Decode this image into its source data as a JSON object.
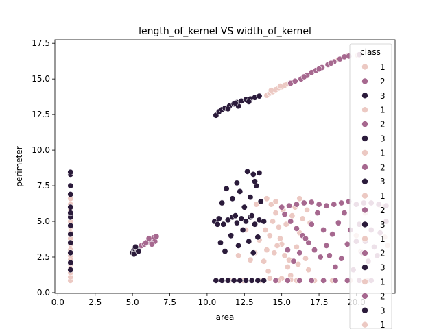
{
  "chart_data": {
    "type": "scatter",
    "title": "length_of_kernel VS width_of_kernel",
    "xlabel": "area",
    "ylabel": "perimeter",
    "xlim": [
      -0.2,
      22.6
    ],
    "ylim": [
      -0.05,
      17.75
    ],
    "xticks": [
      "0.0",
      "2.5",
      "5.0",
      "7.5",
      "10.0",
      "12.5",
      "15.0",
      "17.5",
      "20.0"
    ],
    "xtick_values": [
      0,
      2.5,
      5,
      7.5,
      10,
      12.5,
      15,
      17.5,
      20
    ],
    "yticks": [
      "0.0",
      "2.5",
      "5.0",
      "7.5",
      "10.0",
      "12.5",
      "15.0",
      "17.5"
    ],
    "ytick_values": [
      0,
      2.5,
      5,
      7.5,
      10,
      12.5,
      15,
      17.5
    ],
    "grid": false,
    "legend": {
      "title": "class",
      "placement": "top-right",
      "entries": [
        {
          "label": "1",
          "color": "#ecc9c3"
        },
        {
          "label": "2",
          "color": "#a6688f"
        },
        {
          "label": "3",
          "color": "#2b1b3b"
        },
        {
          "label": "1",
          "color": "#ecc9c3"
        },
        {
          "label": "2",
          "color": "#a6688f"
        },
        {
          "label": "3",
          "color": "#2b1b3b"
        },
        {
          "label": "1",
          "color": "#ecc9c3"
        },
        {
          "label": "2",
          "color": "#a6688f"
        },
        {
          "label": "3",
          "color": "#2b1b3b"
        },
        {
          "label": "1",
          "color": "#ecc9c3"
        },
        {
          "label": "2",
          "color": "#a6688f"
        },
        {
          "label": "3",
          "color": "#2b1b3b"
        },
        {
          "label": "1",
          "color": "#ecc9c3"
        },
        {
          "label": "2",
          "color": "#a6688f"
        },
        {
          "label": "3",
          "color": "#2b1b3b"
        },
        {
          "label": "1",
          "color": "#ecc9c3"
        },
        {
          "label": "2",
          "color": "#a6688f"
        },
        {
          "label": "3",
          "color": "#2b1b3b"
        },
        {
          "label": "1",
          "color": "#ecc9c3"
        }
      ]
    },
    "series": [
      {
        "name": "1",
        "color": "#ecc9c3",
        "points": [
          [
            0.85,
            0.85
          ],
          [
            0.85,
            1.1
          ],
          [
            0.85,
            1.4
          ],
          [
            0.85,
            1.7
          ],
          [
            0.85,
            2.0
          ],
          [
            0.85,
            2.3
          ],
          [
            0.85,
            2.6
          ],
          [
            0.85,
            3.0
          ],
          [
            0.85,
            3.4
          ],
          [
            0.85,
            3.8
          ],
          [
            0.85,
            4.2
          ],
          [
            0.85,
            4.6
          ],
          [
            0.85,
            5.0
          ],
          [
            0.85,
            5.4
          ],
          [
            0.85,
            5.8
          ],
          [
            0.85,
            6.2
          ],
          [
            0.85,
            6.6
          ],
          [
            14.0,
            13.85
          ],
          [
            14.2,
            14.0
          ],
          [
            14.4,
            14.1
          ],
          [
            14.6,
            14.25
          ],
          [
            14.8,
            14.35
          ],
          [
            15.0,
            14.45
          ],
          [
            15.2,
            14.55
          ],
          [
            15.4,
            14.65
          ],
          [
            15.6,
            14.75
          ],
          [
            14.3,
            14.2
          ],
          [
            14.9,
            14.5
          ],
          [
            18.8,
            16.35
          ],
          [
            19.4,
            16.6
          ],
          [
            20.1,
            16.65
          ],
          [
            13.8,
            2.2
          ],
          [
            14.0,
            3.0
          ],
          [
            14.2,
            4.0
          ],
          [
            14.4,
            5.0
          ],
          [
            14.6,
            5.6
          ],
          [
            14.8,
            4.6
          ],
          [
            15.0,
            3.4
          ],
          [
            15.2,
            2.6
          ],
          [
            15.4,
            1.8
          ],
          [
            15.6,
            1.2
          ],
          [
            15.8,
            2.2
          ],
          [
            16.0,
            3.2
          ],
          [
            16.2,
            4.2
          ],
          [
            16.4,
            5.2
          ],
          [
            16.6,
            2.4
          ],
          [
            16.8,
            1.6
          ],
          [
            14.1,
            1.5
          ],
          [
            14.5,
            2.8
          ],
          [
            14.9,
            3.8
          ],
          [
            15.3,
            4.8
          ],
          [
            15.7,
            5.4
          ],
          [
            16.1,
            2.0
          ],
          [
            14.3,
            6.2
          ],
          [
            15.1,
            5.8
          ],
          [
            15.9,
            6.0
          ],
          [
            14.0,
            6.6
          ],
          [
            14.7,
            3.3
          ],
          [
            15.5,
            2.3
          ],
          [
            13.9,
            4.4
          ],
          [
            14.2,
            1.0
          ],
          [
            15.0,
            1.0
          ],
          [
            15.6,
            0.9
          ],
          [
            12.9,
            2.3
          ],
          [
            13.2,
            2.8
          ],
          [
            12.6,
            4.4
          ],
          [
            13.5,
            3.7
          ],
          [
            12.1,
            2.6
          ],
          [
            13.3,
            6.2
          ],
          [
            14.6,
            6.4
          ],
          [
            16.2,
            6.6
          ],
          [
            16.7,
            5.8
          ],
          [
            16.9,
            4.9
          ],
          [
            20.0,
            4.0
          ],
          [
            20.6,
            5.6
          ],
          [
            21.6,
            6.1
          ],
          [
            21.9,
            3.9
          ],
          [
            22.1,
            3.3
          ],
          [
            20.3,
            2.9
          ],
          [
            10.6,
            0.85
          ],
          [
            11.5,
            0.85
          ],
          [
            12.4,
            0.85
          ],
          [
            13.6,
            0.85
          ],
          [
            14.8,
            0.85
          ],
          [
            16.0,
            0.85
          ],
          [
            17.2,
            0.85
          ],
          [
            18.4,
            0.85
          ],
          [
            19.6,
            0.85
          ],
          [
            20.8,
            0.85
          ]
        ]
      },
      {
        "name": "2",
        "color": "#a6688f",
        "points": [
          [
            15.6,
            14.7
          ],
          [
            15.9,
            14.85
          ],
          [
            16.3,
            15.0
          ],
          [
            16.7,
            15.25
          ],
          [
            17.0,
            15.45
          ],
          [
            17.3,
            15.6
          ],
          [
            17.7,
            15.8
          ],
          [
            18.1,
            16.0
          ],
          [
            18.5,
            16.2
          ],
          [
            18.9,
            16.4
          ],
          [
            19.2,
            16.55
          ],
          [
            16.5,
            15.15
          ],
          [
            17.5,
            15.7
          ],
          [
            18.3,
            16.1
          ],
          [
            19.5,
            16.6
          ],
          [
            20.2,
            16.7
          ],
          [
            5.4,
            3.1
          ],
          [
            5.6,
            3.3
          ],
          [
            5.8,
            3.4
          ],
          [
            6.0,
            3.55
          ],
          [
            6.2,
            3.7
          ],
          [
            6.4,
            3.85
          ],
          [
            6.5,
            3.6
          ],
          [
            6.3,
            3.4
          ],
          [
            6.6,
            3.95
          ],
          [
            5.9,
            3.5
          ],
          [
            6.1,
            3.8
          ],
          [
            15.0,
            6.0
          ],
          [
            15.5,
            6.1
          ],
          [
            16.0,
            6.2
          ],
          [
            16.5,
            6.3
          ],
          [
            17.0,
            6.35
          ],
          [
            17.5,
            6.2
          ],
          [
            18.0,
            6.1
          ],
          [
            18.5,
            6.2
          ],
          [
            19.0,
            6.3
          ],
          [
            19.5,
            6.4
          ],
          [
            20.0,
            6.2
          ],
          [
            20.5,
            6.3
          ],
          [
            21.0,
            6.3
          ],
          [
            21.5,
            6.2
          ],
          [
            22.0,
            6.1
          ],
          [
            15.2,
            5.5
          ],
          [
            15.6,
            5.0
          ],
          [
            16.0,
            4.5
          ],
          [
            16.4,
            4.0
          ],
          [
            16.8,
            3.5
          ],
          [
            17.2,
            3.0
          ],
          [
            17.6,
            2.5
          ],
          [
            18.0,
            3.3
          ],
          [
            18.4,
            4.1
          ],
          [
            18.8,
            4.9
          ],
          [
            19.2,
            5.6
          ],
          [
            19.6,
            4.4
          ],
          [
            20.0,
            3.6
          ],
          [
            20.4,
            2.8
          ],
          [
            20.8,
            2.2
          ],
          [
            21.2,
            3.2
          ],
          [
            21.6,
            4.2
          ],
          [
            22.0,
            5.0
          ],
          [
            15.4,
            3.0
          ],
          [
            15.8,
            2.2
          ],
          [
            16.2,
            2.8
          ],
          [
            16.6,
            3.8
          ],
          [
            17.0,
            4.8
          ],
          [
            17.4,
            5.6
          ],
          [
            17.8,
            4.4
          ],
          [
            18.2,
            2.6
          ],
          [
            18.6,
            1.8
          ],
          [
            19.0,
            2.4
          ],
          [
            19.4,
            3.4
          ],
          [
            19.8,
            1.6
          ],
          [
            20.2,
            4.8
          ],
          [
            20.6,
            3.6
          ],
          [
            21.0,
            4.4
          ],
          [
            21.4,
            2.6
          ],
          [
            14.6,
            0.85
          ],
          [
            15.4,
            0.85
          ],
          [
            16.2,
            0.85
          ],
          [
            17.0,
            0.85
          ],
          [
            17.8,
            0.85
          ],
          [
            18.6,
            0.85
          ],
          [
            19.4,
            0.85
          ],
          [
            20.2,
            0.85
          ],
          [
            21.0,
            0.85
          ]
        ]
      },
      {
        "name": "3",
        "color": "#2b1b3b",
        "points": [
          [
            0.85,
            1.6
          ],
          [
            0.85,
            2.1
          ],
          [
            0.85,
            2.8
          ],
          [
            0.85,
            3.5
          ],
          [
            0.85,
            4.1
          ],
          [
            0.85,
            4.7
          ],
          [
            0.85,
            5.3
          ],
          [
            0.85,
            5.6
          ],
          [
            0.85,
            6.0
          ],
          [
            0.85,
            6.9
          ],
          [
            0.85,
            7.5
          ],
          [
            0.85,
            8.3
          ],
          [
            0.85,
            8.45
          ],
          [
            10.6,
            12.45
          ],
          [
            10.8,
            12.7
          ],
          [
            11.0,
            12.85
          ],
          [
            11.2,
            12.95
          ],
          [
            11.5,
            13.1
          ],
          [
            11.8,
            13.25
          ],
          [
            12.0,
            13.35
          ],
          [
            12.3,
            13.45
          ],
          [
            12.6,
            13.55
          ],
          [
            12.9,
            13.6
          ],
          [
            13.2,
            13.7
          ],
          [
            13.5,
            13.8
          ],
          [
            11.4,
            12.9
          ],
          [
            12.1,
            13.1
          ],
          [
            12.8,
            13.4
          ],
          [
            11.9,
            13.3
          ],
          [
            5.0,
            2.8
          ],
          [
            5.1,
            3.0
          ],
          [
            5.2,
            2.9
          ],
          [
            5.3,
            3.1
          ],
          [
            5.1,
            2.7
          ],
          [
            5.4,
            2.9
          ],
          [
            5.2,
            3.2
          ],
          [
            10.5,
            5.0
          ],
          [
            10.8,
            5.2
          ],
          [
            11.1,
            4.8
          ],
          [
            11.4,
            5.1
          ],
          [
            11.7,
            5.3
          ],
          [
            12.0,
            4.9
          ],
          [
            12.3,
            5.2
          ],
          [
            12.6,
            5.0
          ],
          [
            12.9,
            5.3
          ],
          [
            13.2,
            4.8
          ],
          [
            13.5,
            5.1
          ],
          [
            13.8,
            5.0
          ],
          [
            10.7,
            4.8
          ],
          [
            11.9,
            5.4
          ],
          [
            13.0,
            5.4
          ],
          [
            11.0,
            6.3
          ],
          [
            11.3,
            7.3
          ],
          [
            11.7,
            6.6
          ],
          [
            12.2,
            7.1
          ],
          [
            12.5,
            6.0
          ],
          [
            12.9,
            6.7
          ],
          [
            13.3,
            7.5
          ],
          [
            13.6,
            6.4
          ],
          [
            11.6,
            4.0
          ],
          [
            12.1,
            3.3
          ],
          [
            12.4,
            4.4
          ],
          [
            12.8,
            3.6
          ],
          [
            13.1,
            2.8
          ],
          [
            13.4,
            3.9
          ],
          [
            11.2,
            2.9
          ],
          [
            10.9,
            3.5
          ],
          [
            12.7,
            8.5
          ],
          [
            13.1,
            8.3
          ],
          [
            13.5,
            8.4
          ],
          [
            13.2,
            7.8
          ],
          [
            12.0,
            7.7
          ],
          [
            10.6,
            0.85
          ],
          [
            11.0,
            0.85
          ],
          [
            11.4,
            0.85
          ],
          [
            11.8,
            0.85
          ],
          [
            12.2,
            0.85
          ],
          [
            12.6,
            0.85
          ],
          [
            13.0,
            0.85
          ],
          [
            13.4,
            0.85
          ],
          [
            13.8,
            0.85
          ]
        ]
      }
    ]
  }
}
